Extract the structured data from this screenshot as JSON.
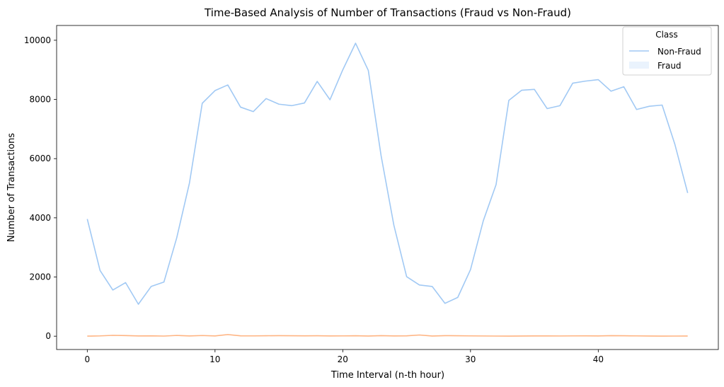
{
  "chart_data": {
    "type": "line",
    "title": "Time-Based Analysis of Number of Transactions (Fraud vs Non-Fraud)",
    "xlabel": "Time Interval (n-th hour)",
    "ylabel": "Number of Transactions",
    "xlim": [
      -2.4,
      49.4
    ],
    "ylim": [
      -450,
      10500
    ],
    "xticks": [
      0,
      10,
      20,
      30,
      40
    ],
    "yticks": [
      0,
      2000,
      4000,
      6000,
      8000,
      10000
    ],
    "grid": false,
    "legend": {
      "title": "Class",
      "position": "top-right"
    },
    "x": [
      0,
      1,
      2,
      3,
      4,
      5,
      6,
      7,
      8,
      9,
      10,
      11,
      12,
      13,
      14,
      15,
      16,
      17,
      18,
      19,
      20,
      21,
      22,
      23,
      24,
      25,
      26,
      27,
      28,
      29,
      30,
      31,
      32,
      33,
      34,
      35,
      36,
      37,
      38,
      39,
      40,
      41,
      42,
      43,
      44,
      45,
      46,
      47
    ],
    "series": [
      {
        "name": "Non-Fraud",
        "color": "#a1c9f4",
        "values": [
          3960,
          2220,
          1560,
          1810,
          1080,
          1680,
          1830,
          3320,
          5180,
          7870,
          8300,
          8490,
          7740,
          7590,
          8030,
          7840,
          7790,
          7880,
          8610,
          7990,
          9000,
          9900,
          8980,
          6100,
          3750,
          2010,
          1730,
          1680,
          1110,
          1310,
          2250,
          3900,
          5120,
          7970,
          8310,
          8340,
          7690,
          7790,
          8550,
          8620,
          8670,
          8280,
          8430,
          7660,
          7770,
          7810,
          6480,
          4840
        ]
      },
      {
        "name": "Fraud",
        "color": "#ffb482",
        "values": [
          2,
          10,
          28,
          20,
          8,
          12,
          4,
          25,
          8,
          22,
          8,
          55,
          12,
          10,
          15,
          18,
          14,
          12,
          14,
          8,
          10,
          14,
          6,
          18,
          8,
          12,
          40,
          5,
          18,
          15,
          10,
          7,
          4,
          2,
          5,
          8,
          9,
          7,
          10,
          12,
          8,
          18,
          15,
          10,
          5,
          2,
          4,
          6
        ]
      }
    ]
  }
}
